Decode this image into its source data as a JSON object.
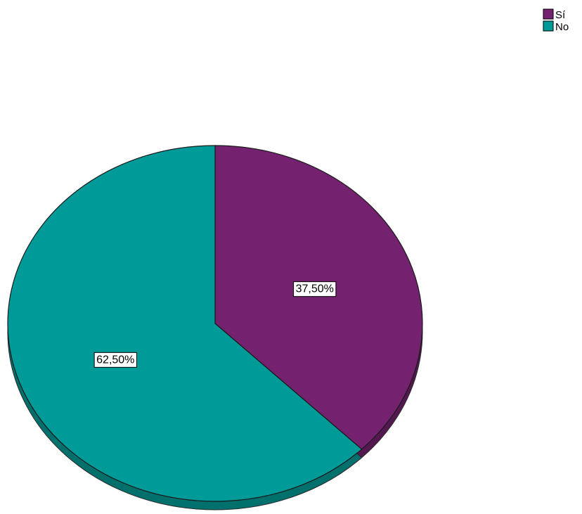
{
  "chart_data": {
    "type": "pie",
    "categories": [
      "Sí",
      "No"
    ],
    "values": [
      37.5,
      62.5
    ],
    "data_labels": [
      "37,50%",
      "62,50%"
    ],
    "colors": [
      "#74226f",
      "#009b98"
    ],
    "legend": {
      "placement": "top-right",
      "entries": [
        {
          "label": "Sí",
          "color": "#74226f"
        },
        {
          "label": "No",
          "color": "#009b98"
        }
      ]
    }
  }
}
